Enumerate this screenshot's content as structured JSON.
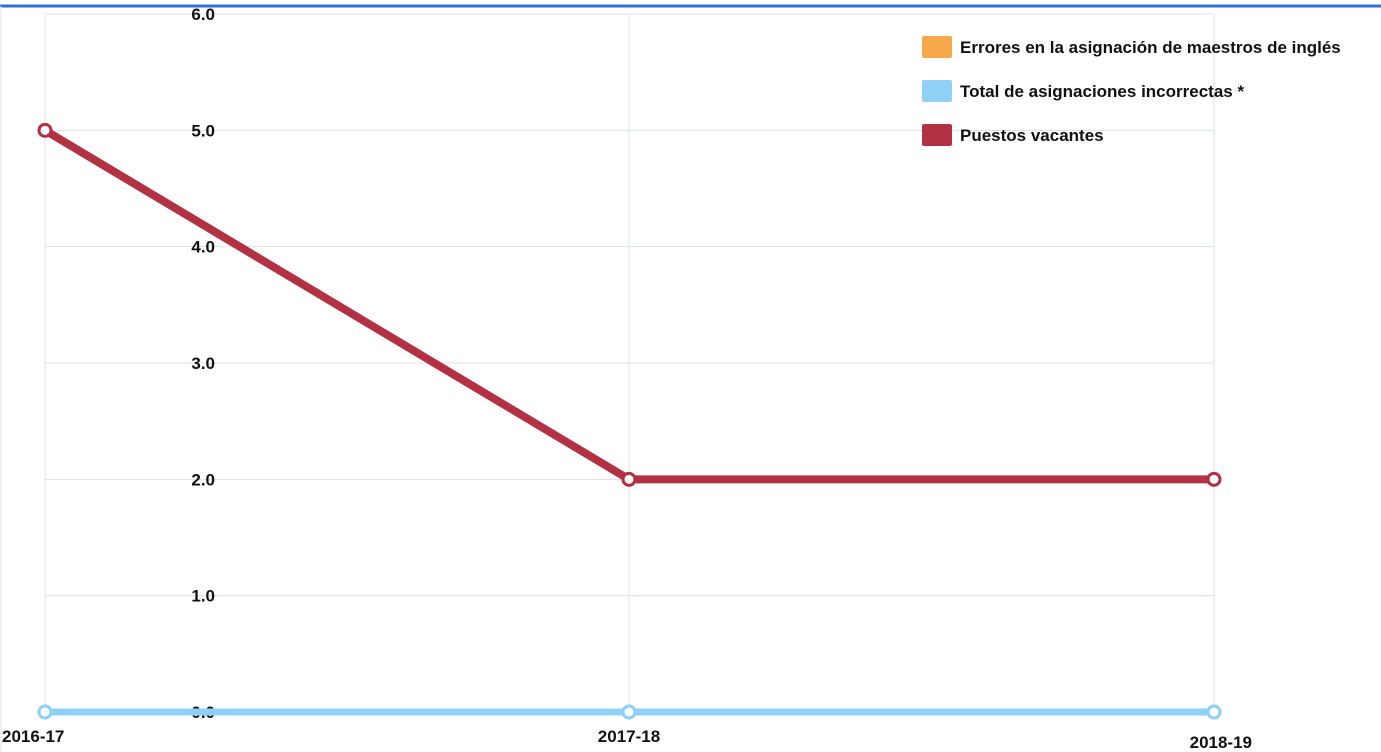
{
  "chart_data": {
    "type": "line",
    "categories": [
      "2016-17",
      "2017-18",
      "2018-19"
    ],
    "series": [
      {
        "name": "Errores en la asignación de maestros de inglés",
        "values": [
          0,
          0,
          0
        ],
        "color": "#f6a84a"
      },
      {
        "name": "Total de asignaciones incorrectas *",
        "values": [
          0,
          0,
          0
        ],
        "color": "#8fd0f7"
      },
      {
        "name": "Puestos vacantes",
        "values": [
          5,
          2,
          2
        ],
        "color": "#b23142"
      }
    ],
    "y_ticks": [
      "0.0",
      "1.0",
      "2.0",
      "3.0",
      "4.0",
      "5.0",
      "6.0"
    ],
    "ylim": [
      0,
      6
    ],
    "grid": true,
    "legend_position": "top-right"
  },
  "colors": {
    "frame_top": "#2f6fd6",
    "grid": "#dde1ea"
  }
}
